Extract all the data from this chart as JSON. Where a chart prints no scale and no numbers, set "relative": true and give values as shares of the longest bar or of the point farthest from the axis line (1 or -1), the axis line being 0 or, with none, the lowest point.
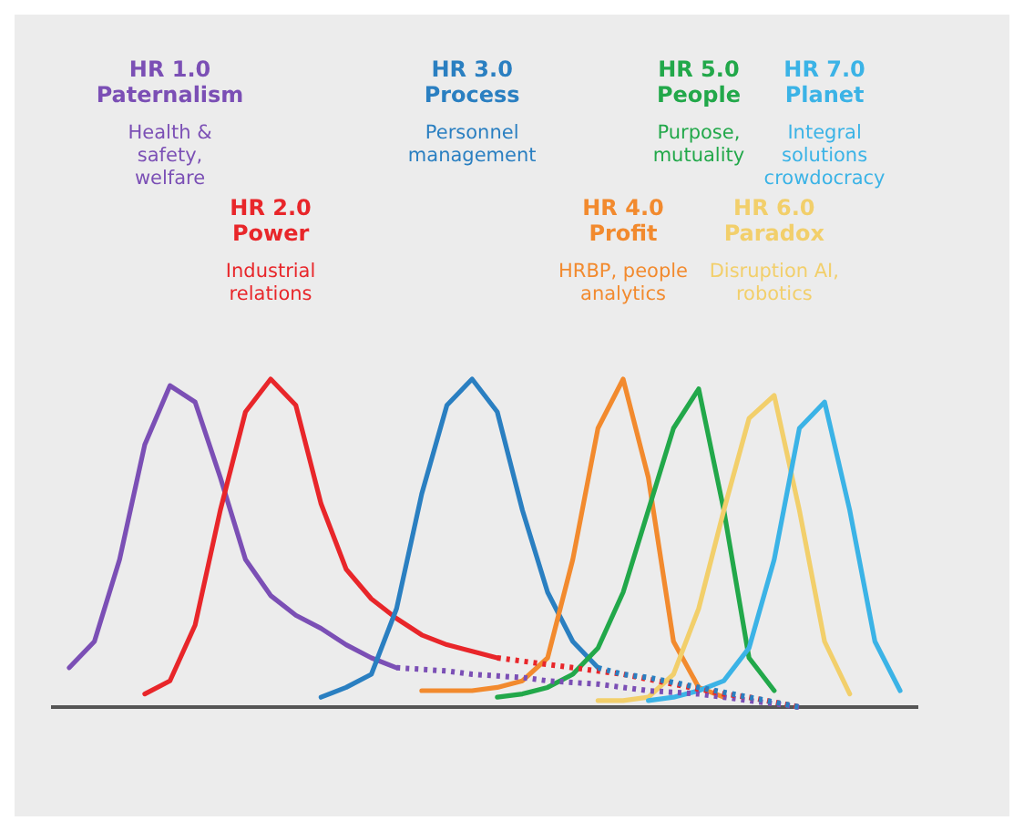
{
  "chart_data": {
    "type": "line",
    "relative": true,
    "line_style": "solid",
    "categories": [
      null,
      null,
      null,
      null,
      null,
      null,
      null,
      null,
      null,
      null,
      null,
      null,
      null,
      null,
      null,
      null,
      null,
      null,
      null,
      null,
      null,
      null,
      null,
      null,
      null,
      null,
      null,
      null,
      null,
      null,
      null,
      null,
      null,
      null
    ],
    "annotations": [
      "Health & safety, welfare",
      "Industrial relations",
      "Personnel management",
      "HRBP, people analytics",
      "Purpose, mutuality",
      "Disruption AI, robotics",
      "Integral solutions crowdocracy"
    ],
    "series": [
      {
        "name": "HR 1.0 Paternalism",
        "color": "#7b4fb5",
        "values": [
          0.12,
          0.2,
          0.45,
          0.8,
          0.98,
          0.93,
          0.7,
          0.45,
          0.34,
          0.28,
          0.24,
          0.19,
          0.15,
          0.12,
          null,
          null,
          null,
          null,
          null,
          null,
          null,
          null,
          null,
          null,
          null,
          null,
          null,
          null,
          null,
          null,
          null,
          null,
          null,
          null
        ]
      },
      {
        "name": "HR 2.0 Power",
        "color": "#e8262a",
        "values": [
          null,
          null,
          null,
          0.04,
          0.08,
          0.25,
          0.6,
          0.9,
          1.0,
          0.92,
          0.62,
          0.42,
          0.33,
          0.27,
          0.22,
          0.19,
          0.17,
          0.15,
          null,
          null,
          null,
          null,
          null,
          null,
          null,
          null,
          null,
          null,
          null,
          null,
          null,
          null,
          null,
          null
        ]
      },
      {
        "name": "HR 3.0 Process",
        "color": "#2a7fc1",
        "values": [
          null,
          null,
          null,
          null,
          null,
          null,
          null,
          null,
          null,
          null,
          0.03,
          0.06,
          0.1,
          0.3,
          0.65,
          0.92,
          1.0,
          0.9,
          0.6,
          0.35,
          0.2,
          0.12,
          null,
          null,
          null,
          null,
          null,
          null,
          null,
          null,
          null,
          null,
          null,
          null
        ]
      },
      {
        "name": "HR 4.0 Profit",
        "color": "#f28a2e",
        "values": [
          null,
          null,
          null,
          null,
          null,
          null,
          null,
          null,
          null,
          null,
          null,
          null,
          null,
          null,
          0.05,
          0.05,
          0.05,
          0.06,
          0.08,
          0.15,
          0.45,
          0.85,
          1.0,
          0.7,
          0.2,
          0.06,
          0.03,
          null,
          null,
          null,
          null,
          null,
          null,
          null
        ]
      },
      {
        "name": "HR 5.0 People",
        "color": "#22a84a",
        "values": [
          null,
          null,
          null,
          null,
          null,
          null,
          null,
          null,
          null,
          null,
          null,
          null,
          null,
          null,
          null,
          null,
          null,
          0.03,
          0.04,
          0.06,
          0.1,
          0.18,
          0.35,
          0.6,
          0.85,
          0.97,
          0.6,
          0.15,
          0.05,
          null,
          null,
          null,
          null,
          null
        ]
      },
      {
        "name": "HR 6.0 Paradox",
        "color": "#f2cf6b",
        "values": [
          null,
          null,
          null,
          null,
          null,
          null,
          null,
          null,
          null,
          null,
          null,
          null,
          null,
          null,
          null,
          null,
          null,
          null,
          null,
          null,
          null,
          0.02,
          0.02,
          0.03,
          0.1,
          0.3,
          0.6,
          0.88,
          0.95,
          0.6,
          0.2,
          0.04,
          null,
          null
        ]
      },
      {
        "name": "HR 7.0 Planet",
        "color": "#3bb3e6",
        "values": [
          null,
          null,
          null,
          null,
          null,
          null,
          null,
          null,
          null,
          null,
          null,
          null,
          null,
          null,
          null,
          null,
          null,
          null,
          null,
          null,
          null,
          null,
          null,
          0.02,
          0.03,
          0.05,
          0.08,
          0.18,
          0.45,
          0.85,
          0.93,
          0.6,
          0.2,
          0.05
        ]
      },
      {
        "color": "#7b4fb5",
        "line_style": "dotted",
        "values": [
          null,
          null,
          null,
          null,
          null,
          null,
          null,
          null,
          null,
          null,
          null,
          null,
          null,
          0.12,
          0.115,
          0.11,
          0.1,
          0.095,
          0.09,
          0.08,
          0.075,
          0.07,
          0.06,
          0.05,
          0.045,
          0.04,
          0.03,
          0.02,
          0.01,
          0.0,
          null,
          null,
          null,
          null
        ]
      },
      {
        "color": "#e8262a",
        "line_style": "dotted",
        "values": [
          null,
          null,
          null,
          null,
          null,
          null,
          null,
          null,
          null,
          null,
          null,
          null,
          null,
          null,
          null,
          null,
          null,
          0.15,
          0.14,
          0.13,
          0.12,
          0.11,
          0.1,
          0.085,
          0.07,
          0.055,
          0.04,
          0.03,
          0.015,
          0.0,
          null,
          null,
          null,
          null
        ]
      },
      {
        "color": "#2a7fc1",
        "line_style": "dotted",
        "values": [
          null,
          null,
          null,
          null,
          null,
          null,
          null,
          null,
          null,
          null,
          null,
          null,
          null,
          null,
          null,
          null,
          null,
          null,
          null,
          null,
          null,
          0.12,
          0.1,
          0.09,
          0.075,
          0.06,
          0.045,
          0.03,
          0.015,
          0.0,
          null,
          null,
          null,
          null
        ]
      }
    ]
  }
}
